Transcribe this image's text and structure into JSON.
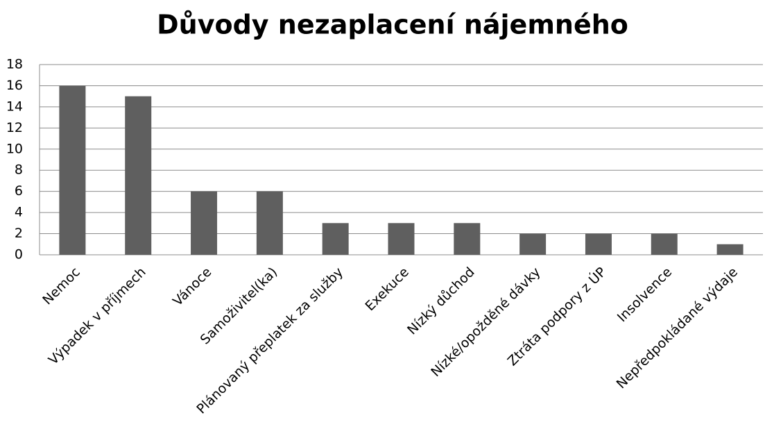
{
  "chart_data": {
    "type": "bar",
    "title": "Důvody nezaplacení nájemného",
    "categories": [
      "Nemoc",
      "Výpadek v příjmech",
      "Vánoce",
      "Samoživitel(ka)",
      "Plánovaný přeplatek za služby",
      "Exekuce",
      "Nízký důchod",
      "Nízké/opožděné dávky",
      "Ztráta podpory z ÚP",
      "Insolvence",
      "Nepředpokládané výdaje"
    ],
    "values": [
      16,
      15,
      6,
      6,
      3,
      3,
      3,
      2,
      2,
      2,
      1
    ],
    "color": "#5f5f5f",
    "ylim": [
      0,
      18
    ],
    "yticks": [
      0,
      2,
      4,
      6,
      8,
      10,
      12,
      14,
      16,
      18
    ],
    "grid": true
  }
}
